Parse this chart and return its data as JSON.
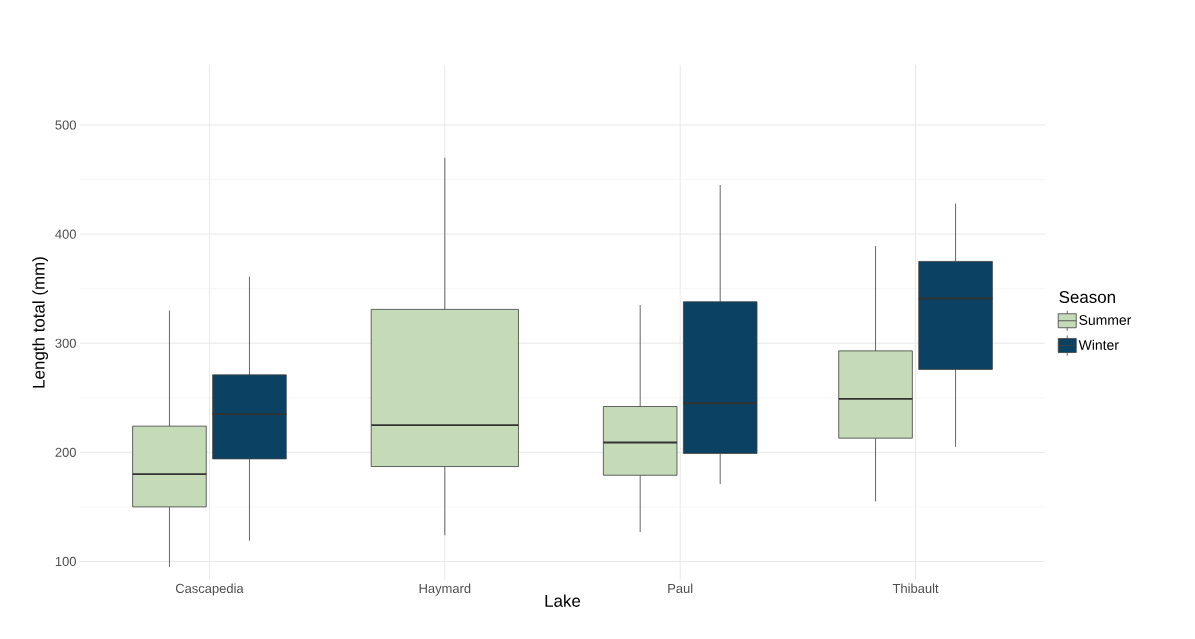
{
  "chart_data": {
    "type": "box",
    "xlabel": "Lake",
    "ylabel": "Length total (mm)",
    "legend_title": "Season",
    "categories": [
      "Cascapedia",
      "Haymard",
      "Paul",
      "Thibault"
    ],
    "series": [
      {
        "name": "Summer",
        "color": "#c5dbb8",
        "boxes": [
          {
            "low": 95,
            "q1": 150,
            "median": 180,
            "q3": 224,
            "high": 330
          },
          {
            "low": 124,
            "q1": 187,
            "median": 225,
            "q3": 331,
            "high": 470
          },
          {
            "low": 127,
            "q1": 179,
            "median": 209,
            "q3": 242,
            "high": 335
          },
          {
            "low": 155,
            "q1": 213,
            "median": 249,
            "q3": 293,
            "high": 389
          }
        ]
      },
      {
        "name": "Winter",
        "color": "#0b4263",
        "boxes": [
          {
            "low": 119,
            "q1": 194,
            "median": 235,
            "q3": 271,
            "high": 361
          },
          null,
          {
            "low": 171,
            "q1": 199,
            "median": 245,
            "q3": 338,
            "high": 445
          },
          {
            "low": 205,
            "q1": 276,
            "median": 341,
            "q3": 375,
            "high": 428
          }
        ]
      }
    ],
    "ylim": [
      83,
      555
    ],
    "yticks": [
      100,
      200,
      300,
      400,
      500
    ],
    "grid": true,
    "legend": "right"
  }
}
